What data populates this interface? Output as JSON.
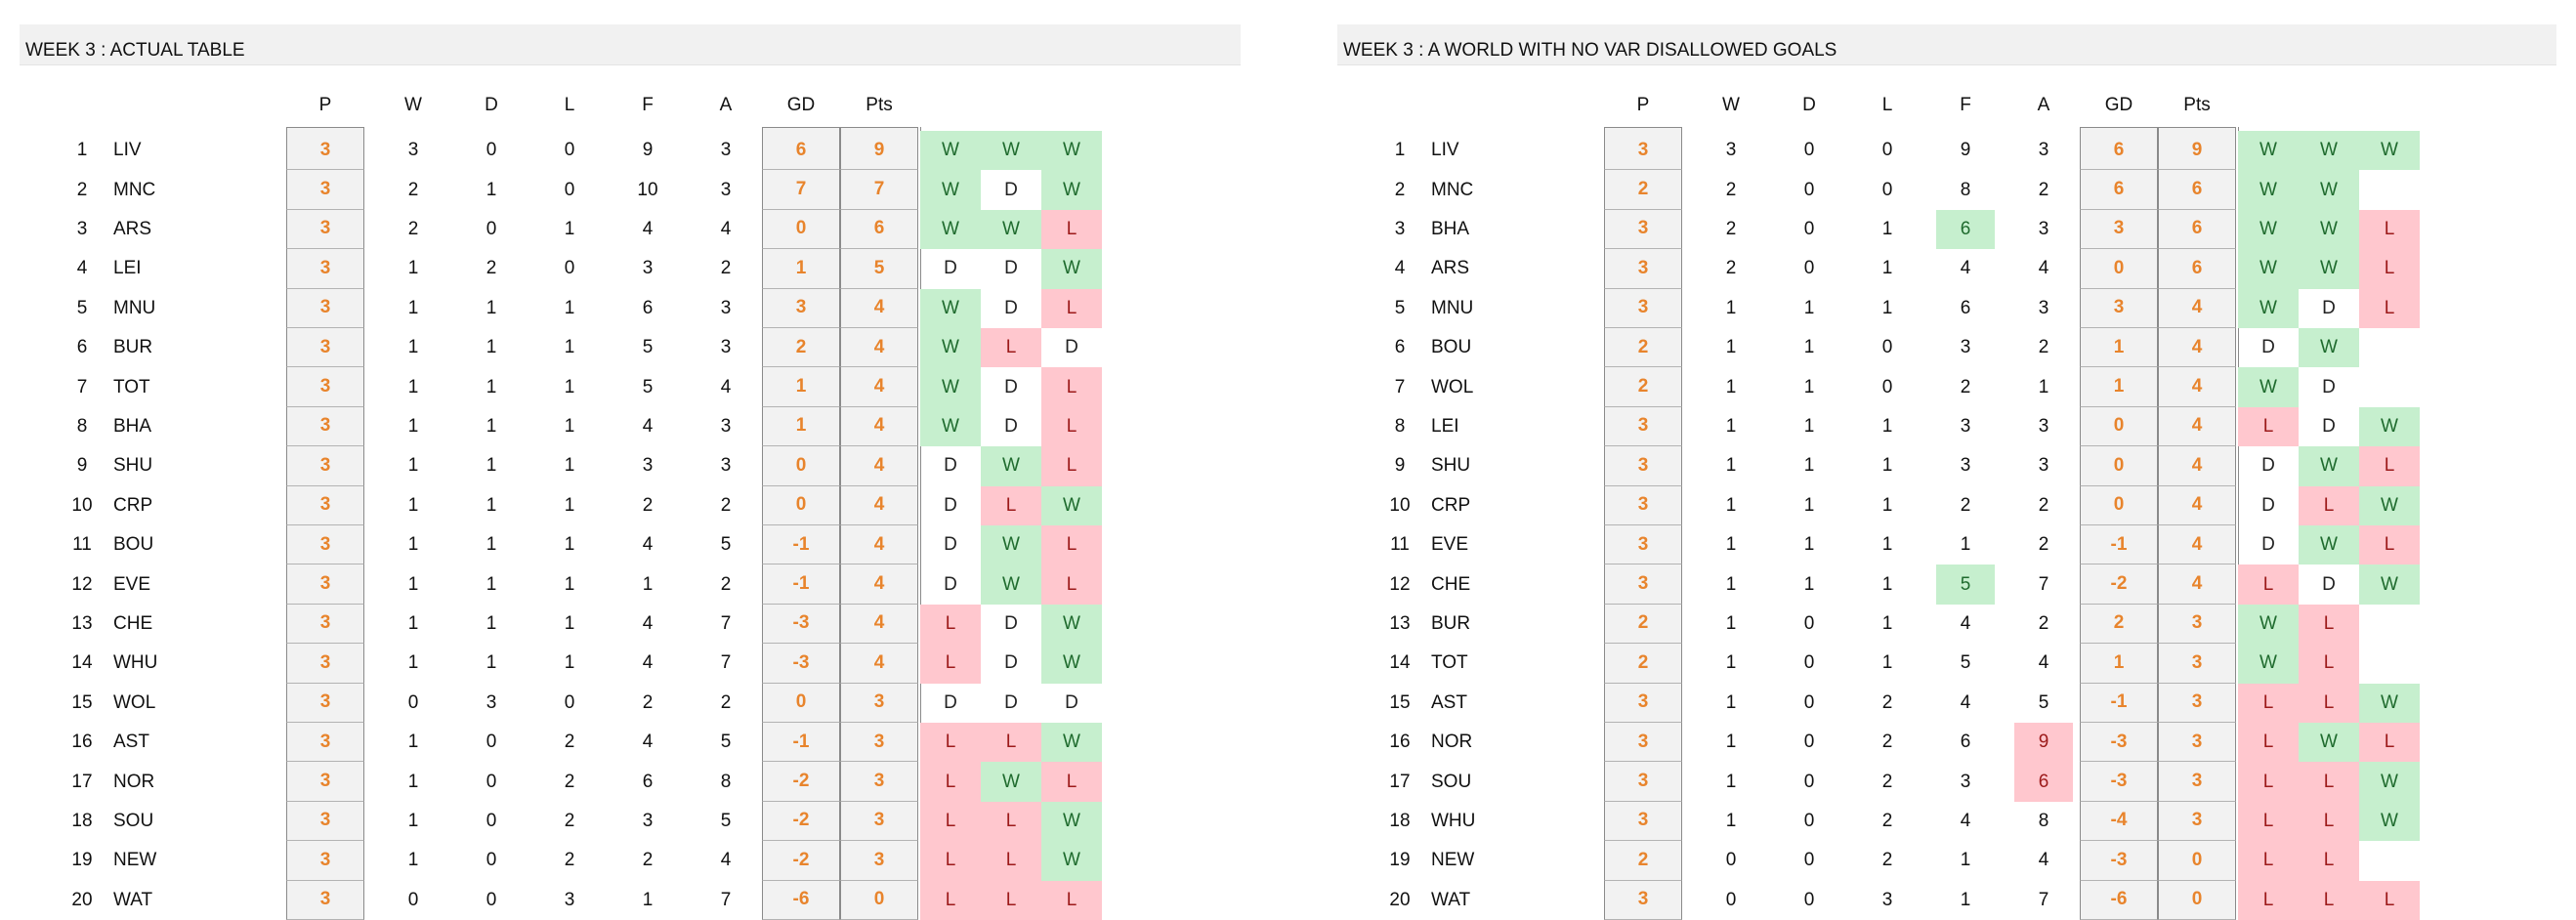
{
  "headers": {
    "p": "P",
    "w": "W",
    "d": "D",
    "l": "L",
    "f": "F",
    "a": "A",
    "gd": "GD",
    "pts": "Pts"
  },
  "colors": {
    "green": "#c6efce",
    "red": "#ffc7ce",
    "orange": "#e8842c",
    "band": "#f1f1f1"
  },
  "tables": [
    {
      "title": "WEEK 3 : ACTUAL TABLE",
      "rows": [
        {
          "pos": "1",
          "team": "LIV",
          "p": "3",
          "w": "3",
          "d": "0",
          "l": "0",
          "f": "9",
          "a": "3",
          "gd": "6",
          "pts": "9",
          "form": [
            "W",
            "W",
            "W"
          ]
        },
        {
          "pos": "2",
          "team": "MNC",
          "p": "3",
          "w": "2",
          "d": "1",
          "l": "0",
          "f": "10",
          "a": "3",
          "gd": "7",
          "pts": "7",
          "form": [
            "W",
            "D",
            "W"
          ]
        },
        {
          "pos": "3",
          "team": "ARS",
          "p": "3",
          "w": "2",
          "d": "0",
          "l": "1",
          "f": "4",
          "a": "4",
          "gd": "0",
          "pts": "6",
          "form": [
            "W",
            "W",
            "L"
          ]
        },
        {
          "pos": "4",
          "team": "LEI",
          "p": "3",
          "w": "1",
          "d": "2",
          "l": "0",
          "f": "3",
          "a": "2",
          "gd": "1",
          "pts": "5",
          "form": [
            "D",
            "D",
            "W"
          ]
        },
        {
          "pos": "5",
          "team": "MNU",
          "p": "3",
          "w": "1",
          "d": "1",
          "l": "1",
          "f": "6",
          "a": "3",
          "gd": "3",
          "pts": "4",
          "form": [
            "W",
            "D",
            "L"
          ]
        },
        {
          "pos": "6",
          "team": "BUR",
          "p": "3",
          "w": "1",
          "d": "1",
          "l": "1",
          "f": "5",
          "a": "3",
          "gd": "2",
          "pts": "4",
          "form": [
            "W",
            "L",
            "D"
          ]
        },
        {
          "pos": "7",
          "team": "TOT",
          "p": "3",
          "w": "1",
          "d": "1",
          "l": "1",
          "f": "5",
          "a": "4",
          "gd": "1",
          "pts": "4",
          "form": [
            "W",
            "D",
            "L"
          ]
        },
        {
          "pos": "8",
          "team": "BHA",
          "p": "3",
          "w": "1",
          "d": "1",
          "l": "1",
          "f": "4",
          "a": "3",
          "gd": "1",
          "pts": "4",
          "form": [
            "W",
            "D",
            "L"
          ]
        },
        {
          "pos": "9",
          "team": "SHU",
          "p": "3",
          "w": "1",
          "d": "1",
          "l": "1",
          "f": "3",
          "a": "3",
          "gd": "0",
          "pts": "4",
          "form": [
            "D",
            "W",
            "L"
          ]
        },
        {
          "pos": "10",
          "team": "CRP",
          "p": "3",
          "w": "1",
          "d": "1",
          "l": "1",
          "f": "2",
          "a": "2",
          "gd": "0",
          "pts": "4",
          "form": [
            "D",
            "L",
            "W"
          ]
        },
        {
          "pos": "11",
          "team": "BOU",
          "p": "3",
          "w": "1",
          "d": "1",
          "l": "1",
          "f": "4",
          "a": "5",
          "gd": "-1",
          "pts": "4",
          "form": [
            "D",
            "W",
            "L"
          ]
        },
        {
          "pos": "12",
          "team": "EVE",
          "p": "3",
          "w": "1",
          "d": "1",
          "l": "1",
          "f": "1",
          "a": "2",
          "gd": "-1",
          "pts": "4",
          "form": [
            "D",
            "W",
            "L"
          ]
        },
        {
          "pos": "13",
          "team": "CHE",
          "p": "3",
          "w": "1",
          "d": "1",
          "l": "1",
          "f": "4",
          "a": "7",
          "gd": "-3",
          "pts": "4",
          "form": [
            "L",
            "D",
            "W"
          ]
        },
        {
          "pos": "14",
          "team": "WHU",
          "p": "3",
          "w": "1",
          "d": "1",
          "l": "1",
          "f": "4",
          "a": "7",
          "gd": "-3",
          "pts": "4",
          "form": [
            "L",
            "D",
            "W"
          ]
        },
        {
          "pos": "15",
          "team": "WOL",
          "p": "3",
          "w": "0",
          "d": "3",
          "l": "0",
          "f": "2",
          "a": "2",
          "gd": "0",
          "pts": "3",
          "form": [
            "D",
            "D",
            "D"
          ]
        },
        {
          "pos": "16",
          "team": "AST",
          "p": "3",
          "w": "1",
          "d": "0",
          "l": "2",
          "f": "4",
          "a": "5",
          "gd": "-1",
          "pts": "3",
          "form": [
            "L",
            "L",
            "W"
          ]
        },
        {
          "pos": "17",
          "team": "NOR",
          "p": "3",
          "w": "1",
          "d": "0",
          "l": "2",
          "f": "6",
          "a": "8",
          "gd": "-2",
          "pts": "3",
          "form": [
            "L",
            "W",
            "L"
          ]
        },
        {
          "pos": "18",
          "team": "SOU",
          "p": "3",
          "w": "1",
          "d": "0",
          "l": "2",
          "f": "3",
          "a": "5",
          "gd": "-2",
          "pts": "3",
          "form": [
            "L",
            "L",
            "W"
          ]
        },
        {
          "pos": "19",
          "team": "NEW",
          "p": "3",
          "w": "1",
          "d": "0",
          "l": "2",
          "f": "2",
          "a": "4",
          "gd": "-2",
          "pts": "3",
          "form": [
            "L",
            "L",
            "W"
          ]
        },
        {
          "pos": "20",
          "team": "WAT",
          "p": "3",
          "w": "0",
          "d": "0",
          "l": "3",
          "f": "1",
          "a": "7",
          "gd": "-6",
          "pts": "0",
          "form": [
            "L",
            "L",
            "L"
          ]
        }
      ]
    },
    {
      "title": "WEEK 3 : A WORLD WITH NO VAR DISALLOWED GOALS",
      "rows": [
        {
          "pos": "1",
          "team": "LIV",
          "p": "3",
          "w": "3",
          "d": "0",
          "l": "0",
          "f": "9",
          "a": "3",
          "gd": "6",
          "pts": "9",
          "form": [
            "W",
            "W",
            "W"
          ]
        },
        {
          "pos": "2",
          "team": "MNC",
          "p": "2",
          "w": "2",
          "d": "0",
          "l": "0",
          "f": "8",
          "a": "2",
          "gd": "6",
          "pts": "6",
          "form": [
            "W",
            "W",
            ""
          ]
        },
        {
          "pos": "3",
          "team": "BHA",
          "p": "3",
          "w": "2",
          "d": "0",
          "l": "1",
          "f": "6",
          "a": "3",
          "gd": "3",
          "pts": "6",
          "form": [
            "W",
            "W",
            "L"
          ],
          "fHi": "green"
        },
        {
          "pos": "4",
          "team": "ARS",
          "p": "3",
          "w": "2",
          "d": "0",
          "l": "1",
          "f": "4",
          "a": "4",
          "gd": "0",
          "pts": "6",
          "form": [
            "W",
            "W",
            "L"
          ]
        },
        {
          "pos": "5",
          "team": "MNU",
          "p": "3",
          "w": "1",
          "d": "1",
          "l": "1",
          "f": "6",
          "a": "3",
          "gd": "3",
          "pts": "4",
          "form": [
            "W",
            "D",
            "L"
          ]
        },
        {
          "pos": "6",
          "team": "BOU",
          "p": "2",
          "w": "1",
          "d": "1",
          "l": "0",
          "f": "3",
          "a": "2",
          "gd": "1",
          "pts": "4",
          "form": [
            "D",
            "W",
            ""
          ]
        },
        {
          "pos": "7",
          "team": "WOL",
          "p": "2",
          "w": "1",
          "d": "1",
          "l": "0",
          "f": "2",
          "a": "1",
          "gd": "1",
          "pts": "4",
          "form": [
            "W",
            "D",
            ""
          ]
        },
        {
          "pos": "8",
          "team": "LEI",
          "p": "3",
          "w": "1",
          "d": "1",
          "l": "1",
          "f": "3",
          "a": "3",
          "gd": "0",
          "pts": "4",
          "form": [
            "L",
            "D",
            "W"
          ]
        },
        {
          "pos": "9",
          "team": "SHU",
          "p": "3",
          "w": "1",
          "d": "1",
          "l": "1",
          "f": "3",
          "a": "3",
          "gd": "0",
          "pts": "4",
          "form": [
            "D",
            "W",
            "L"
          ]
        },
        {
          "pos": "10",
          "team": "CRP",
          "p": "3",
          "w": "1",
          "d": "1",
          "l": "1",
          "f": "2",
          "a": "2",
          "gd": "0",
          "pts": "4",
          "form": [
            "D",
            "L",
            "W"
          ]
        },
        {
          "pos": "11",
          "team": "EVE",
          "p": "3",
          "w": "1",
          "d": "1",
          "l": "1",
          "f": "1",
          "a": "2",
          "gd": "-1",
          "pts": "4",
          "form": [
            "D",
            "W",
            "L"
          ]
        },
        {
          "pos": "12",
          "team": "CHE",
          "p": "3",
          "w": "1",
          "d": "1",
          "l": "1",
          "f": "5",
          "a": "7",
          "gd": "-2",
          "pts": "4",
          "form": [
            "L",
            "D",
            "W"
          ],
          "fHi": "green"
        },
        {
          "pos": "13",
          "team": "BUR",
          "p": "2",
          "w": "1",
          "d": "0",
          "l": "1",
          "f": "4",
          "a": "2",
          "gd": "2",
          "pts": "3",
          "form": [
            "W",
            "L",
            ""
          ]
        },
        {
          "pos": "14",
          "team": "TOT",
          "p": "2",
          "w": "1",
          "d": "0",
          "l": "1",
          "f": "5",
          "a": "4",
          "gd": "1",
          "pts": "3",
          "form": [
            "W",
            "L",
            ""
          ]
        },
        {
          "pos": "15",
          "team": "AST",
          "p": "3",
          "w": "1",
          "d": "0",
          "l": "2",
          "f": "4",
          "a": "5",
          "gd": "-1",
          "pts": "3",
          "form": [
            "L",
            "L",
            "W"
          ]
        },
        {
          "pos": "16",
          "team": "NOR",
          "p": "3",
          "w": "1",
          "d": "0",
          "l": "2",
          "f": "6",
          "a": "9",
          "gd": "-3",
          "pts": "3",
          "form": [
            "L",
            "W",
            "L"
          ],
          "aHi": "red"
        },
        {
          "pos": "17",
          "team": "SOU",
          "p": "3",
          "w": "1",
          "d": "0",
          "l": "2",
          "f": "3",
          "a": "6",
          "gd": "-3",
          "pts": "3",
          "form": [
            "L",
            "L",
            "W"
          ],
          "aHi": "red"
        },
        {
          "pos": "18",
          "team": "WHU",
          "p": "3",
          "w": "1",
          "d": "0",
          "l": "2",
          "f": "4",
          "a": "8",
          "gd": "-4",
          "pts": "3",
          "form": [
            "L",
            "L",
            "W"
          ]
        },
        {
          "pos": "19",
          "team": "NEW",
          "p": "2",
          "w": "0",
          "d": "0",
          "l": "2",
          "f": "1",
          "a": "4",
          "gd": "-3",
          "pts": "0",
          "form": [
            "L",
            "L",
            ""
          ]
        },
        {
          "pos": "20",
          "team": "WAT",
          "p": "3",
          "w": "0",
          "d": "0",
          "l": "3",
          "f": "1",
          "a": "7",
          "gd": "-6",
          "pts": "0",
          "form": [
            "L",
            "L",
            "L"
          ]
        }
      ]
    }
  ]
}
